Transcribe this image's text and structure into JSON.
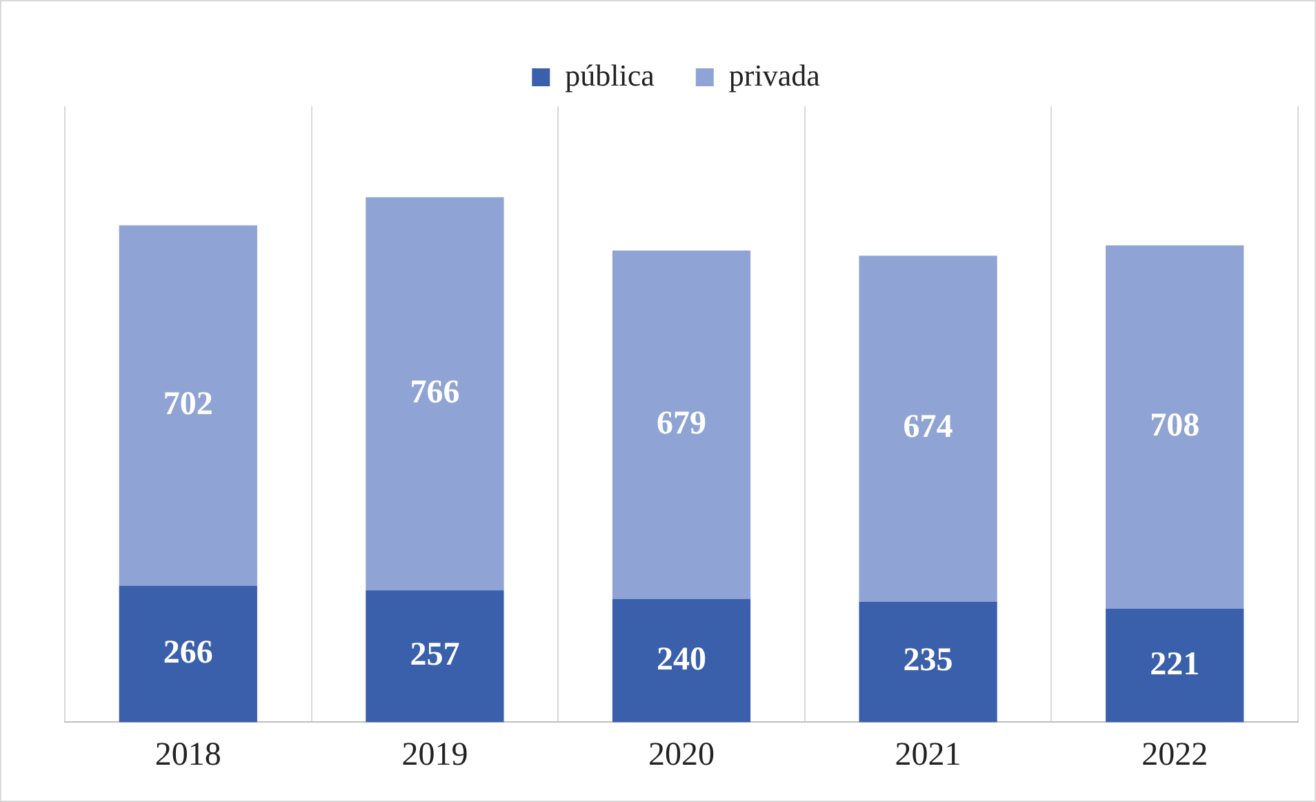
{
  "chart_data": {
    "type": "bar",
    "stacked": true,
    "categories": [
      "2018",
      "2019",
      "2020",
      "2021",
      "2022"
    ],
    "series": [
      {
        "name": "pública",
        "color": "#3a5fab",
        "values": [
          266,
          257,
          240,
          235,
          221
        ]
      },
      {
        "name": "privada",
        "color": "#8fa3d4",
        "values": [
          702,
          766,
          679,
          674,
          708
        ]
      }
    ],
    "ylim": [
      0,
      1200
    ],
    "grid": "x",
    "legend": "top",
    "data_labels": true,
    "tick_labels": "x"
  }
}
